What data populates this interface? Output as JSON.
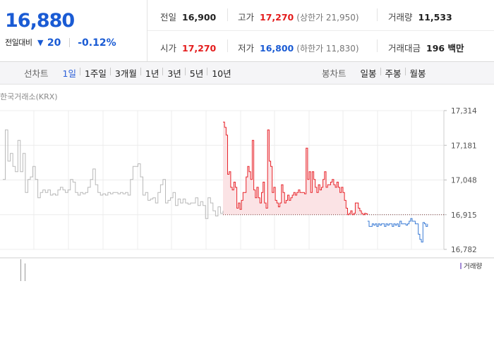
{
  "quote": {
    "price": "16,880",
    "change_label": "전일대비",
    "change_icon": "down-triangle-icon",
    "change_value": "20",
    "change_pct": "-0.12%",
    "color_down": "#1a5bd4",
    "color_up": "#e41c1c"
  },
  "stats": {
    "prev_close_label": "전일",
    "prev_close": "16,900",
    "high_label": "고가",
    "high": "17,270",
    "upper_limit": "(상한가 21,950)",
    "volume_label": "거래량",
    "volume": "11,533",
    "open_label": "시가",
    "open": "17,270",
    "low_label": "저가",
    "low": "16,800",
    "lower_limit": "(하한가 11,830)",
    "value_label": "거래대금",
    "value": "196 백만"
  },
  "toolbar": {
    "line_chart_label": "선차트",
    "line_periods": [
      "1일",
      "1주일",
      "3개월",
      "1년",
      "3년",
      "5년",
      "10년"
    ],
    "active_period": "1일",
    "candle_chart_label": "봉차트",
    "candle_periods": [
      "일봉",
      "주봉",
      "월봉"
    ]
  },
  "chart_data": {
    "type": "line",
    "source_label": "한국거래소(KRX)",
    "volume_legend": "거래량",
    "previous_close": 16900,
    "ylim": [
      16782,
      17314
    ],
    "y_ticks": [
      "17,314",
      "17,181",
      "17,048",
      "16,915",
      "16,782"
    ],
    "grid": true,
    "session_steps": 122,
    "colors": {
      "prior_day": "#b9b9b9",
      "up": "#e8242a",
      "down": "#3a7bd5",
      "fill": "#fbe3e5"
    },
    "series": [
      {
        "values": [
          17050,
          17240,
          17120,
          17150,
          17100,
          17080,
          17200,
          17080,
          17150,
          17000,
          17050,
          17060,
          17100,
          17050,
          16980,
          17000,
          17010,
          17000,
          17010,
          16990,
          16995,
          16990,
          17010,
          17020,
          17010,
          17000,
          17010,
          17050,
          17040,
          17000,
          16990,
          17000,
          16995,
          17000,
          17020,
          17050,
          17090,
          17030,
          17000,
          16990,
          16995,
          16990,
          17000,
          16995,
          17000,
          17000,
          16995,
          17000,
          16995,
          17000,
          16990,
          17050,
          17100,
          17100,
          17110,
          17060,
          16990,
          17000,
          16970,
          16975,
          16980,
          16960,
          17000,
          17030,
          17050,
          16960,
          16970,
          16980,
          17000,
          16950,
          16975,
          16960,
          16975,
          16960,
          16955,
          16960,
          16960,
          16980,
          16950,
          16965,
          16950,
          16900,
          16980,
          16960,
          16930,
          16910,
          16945,
          16920,
          16930
        ]
      },
      {
        "values": [
          17270,
          17250,
          17220,
          17070,
          17080,
          17020,
          17010,
          17040,
          17020,
          16940,
          16960,
          16935,
          16970,
          17000,
          17000,
          17060,
          17100,
          17080,
          17050,
          17200,
          17010,
          16980,
          17020,
          16980,
          16960,
          17000,
          17040,
          16960,
          16940,
          17240,
          17120,
          17100,
          17000,
          17020,
          16970,
          16960,
          16945,
          16960,
          17030,
          17000,
          16960,
          16970,
          16990,
          16970,
          16980,
          16990,
          17000,
          16990,
          17000,
          17010,
          17000,
          17000,
          17000,
          16995,
          17170,
          17050,
          17080,
          17000,
          17080,
          17050,
          17020,
          17000,
          17030,
          17010,
          17020,
          17050,
          17080,
          17020,
          17030,
          17030,
          17040,
          17050,
          17030,
          17020,
          17040,
          17020,
          17000,
          17020,
          17000,
          16970,
          16940,
          16915,
          16920,
          16930,
          16915,
          16920,
          16960,
          16960,
          16940,
          16930,
          16920,
          16915,
          16920,
          16918,
          16915
        ]
      },
      {
        "values": [
          16890,
          16870,
          16870,
          16880,
          16875,
          16880,
          16870,
          16880,
          16875,
          16880,
          16880,
          16870,
          16880,
          16875,
          16880,
          16880,
          16870,
          16880,
          16875,
          16880,
          16870,
          16890,
          16880,
          16880,
          16880,
          16875,
          16880,
          16890,
          16900,
          16890,
          16890,
          16880,
          16880,
          16840,
          16820,
          16810,
          16885,
          16880,
          16870,
          16880
        ]
      }
    ],
    "volume_spikes": [
      3,
      2
    ]
  }
}
